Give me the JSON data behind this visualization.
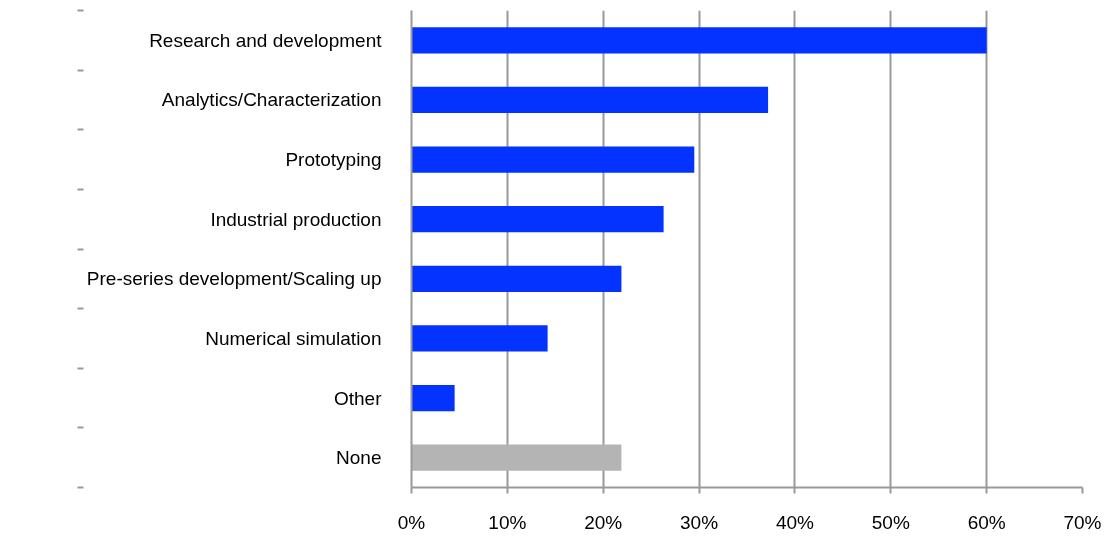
{
  "chart_data": {
    "type": "bar",
    "orientation": "horizontal",
    "categories": [
      "Research and development",
      "Analytics/Characterization",
      "Prototyping",
      "Industrial production",
      "Pre-series development/Scaling up",
      "Numerical simulation",
      "Other",
      "None"
    ],
    "values": [
      60,
      37.2,
      29.5,
      26.3,
      21.9,
      14.2,
      4.5,
      21.9
    ],
    "colors": [
      "#0433ff",
      "#0433ff",
      "#0433ff",
      "#0433ff",
      "#0433ff",
      "#0433ff",
      "#0433ff",
      "#b4b4b4"
    ],
    "xlim": [
      0,
      70
    ],
    "xticks": [
      {
        "value": 0,
        "label": "0%"
      },
      {
        "value": 10,
        "label": "10%"
      },
      {
        "value": 20,
        "label": "20%"
      },
      {
        "value": 30,
        "label": "30%"
      },
      {
        "value": 40,
        "label": "40%"
      },
      {
        "value": 50,
        "label": "50%"
      },
      {
        "value": 60,
        "label": "60%"
      },
      {
        "value": 70,
        "label": "70%"
      }
    ],
    "grid": "x"
  }
}
